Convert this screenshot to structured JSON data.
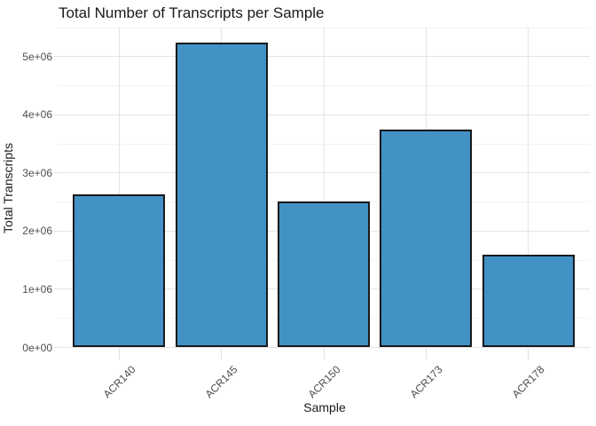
{
  "chart_data": {
    "type": "bar",
    "title": "Total Number of Transcripts per Sample",
    "xlabel": "Sample",
    "ylabel": "Total Transcripts",
    "categories": [
      "ACR140",
      "ACR145",
      "ACR150",
      "ACR173",
      "ACR178"
    ],
    "values": [
      2630000,
      5240000,
      2510000,
      3750000,
      1590000
    ],
    "ylim": [
      0,
      5500000
    ],
    "y_axis": {
      "ticks": [
        {
          "label": "0e+00",
          "value": 0
        },
        {
          "label": "1e+06",
          "value": 1000000
        },
        {
          "label": "2e+06",
          "value": 2000000
        },
        {
          "label": "3e+06",
          "value": 3000000
        },
        {
          "label": "4e+06",
          "value": 4000000
        },
        {
          "label": "5e+06",
          "value": 5000000
        }
      ],
      "minor_step": 500000
    },
    "legend": "none",
    "grid": "major+minor",
    "colors": {
      "bar_fill": "#4292c6",
      "bar_stroke": "#17191c",
      "grid_major": "#e4e4e4",
      "grid_minor": "#f3f3f3",
      "tick_mark": "#dedede",
      "tick_text": "#4d4d4d",
      "title_text": "#1a1a1a",
      "background": "#ffffff"
    }
  }
}
